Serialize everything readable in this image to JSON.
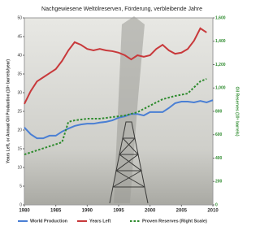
{
  "chart_data": {
    "type": "line",
    "title": "Nachgewiesene Weltölreserven, Förderung, verbleibende Jahre",
    "y_label": "Years Left, or Annual Oil Production (10⁹ barrels/year)",
    "y2_label": "Oil Reserves (10⁹ barrels)",
    "xlim": [
      1980,
      2010
    ],
    "xticks": [
      1980,
      1985,
      1990,
      1995,
      2000,
      2005,
      2010
    ],
    "ylim": [
      0,
      50
    ],
    "yticks": [
      0,
      5,
      10,
      15,
      20,
      25,
      30,
      35,
      40,
      45,
      50
    ],
    "y2lim": [
      0,
      1600
    ],
    "y2ticks": [
      0,
      200,
      400,
      600,
      800,
      {
        "value": 1000,
        "label": "1,000"
      },
      {
        "value": 1200,
        "label": "1,200"
      },
      {
        "value": 1400,
        "label": "1,400"
      },
      {
        "value": 1600,
        "label": "1,600"
      }
    ],
    "series": [
      {
        "name": "World Production",
        "color": "#4a7fd4",
        "dash": false,
        "x": [
          1980,
          1981,
          1982,
          1983,
          1984,
          1985,
          1986,
          1987,
          1988,
          1989,
          1990,
          1991,
          1992,
          1993,
          1994,
          1995,
          1996,
          1997,
          1998,
          1999,
          2000,
          2001,
          2002,
          2003,
          2004,
          2005,
          2006,
          2007,
          2008,
          2009,
          2010
        ],
        "values": [
          20.7,
          18.9,
          17.8,
          17.8,
          18.5,
          18.5,
          19.6,
          20.4,
          21.1,
          21.5,
          21.7,
          21.7,
          22.0,
          22.2,
          22.6,
          23.3,
          23.7,
          24.3,
          24.3,
          23.9,
          24.8,
          24.8,
          24.8,
          25.9,
          27.2,
          27.6,
          27.6,
          27.4,
          27.8,
          27.4,
          28.0
        ]
      },
      {
        "name": "Years Left",
        "color": "#c8393b",
        "dash": false,
        "x": [
          1980,
          1981,
          1982,
          1983,
          1984,
          1985,
          1986,
          1987,
          1988,
          1989,
          1990,
          1991,
          1992,
          1993,
          1994,
          1995,
          1996,
          1997,
          1998,
          1999,
          2000,
          2001,
          2002,
          2003,
          2004,
          2005,
          2006,
          2007,
          2008,
          2009
        ],
        "values": [
          27.0,
          30.4,
          33.0,
          34.1,
          35.2,
          36.3,
          38.5,
          41.3,
          43.5,
          42.8,
          41.7,
          41.3,
          41.7,
          41.3,
          41.1,
          40.7,
          40.0,
          38.9,
          40.0,
          39.6,
          40.0,
          41.7,
          42.8,
          41.3,
          40.4,
          40.7,
          41.7,
          43.9,
          47.2,
          46.1
        ]
      },
      {
        "name": "Proven Reserves (Right Scale)",
        "color": "#2e8b2e",
        "dash": true,
        "axis": "y2",
        "x": [
          1980,
          1982,
          1984,
          1986,
          1987,
          1988,
          1990,
          1992,
          1994,
          1996,
          1998,
          2000,
          2002,
          2004,
          2006,
          2008,
          2009
        ],
        "values": [
          431,
          466,
          501,
          536,
          710,
          723,
          737,
          737,
          751,
          765,
          793,
          849,
          904,
          932,
          953,
          1057,
          1078
        ]
      }
    ]
  }
}
